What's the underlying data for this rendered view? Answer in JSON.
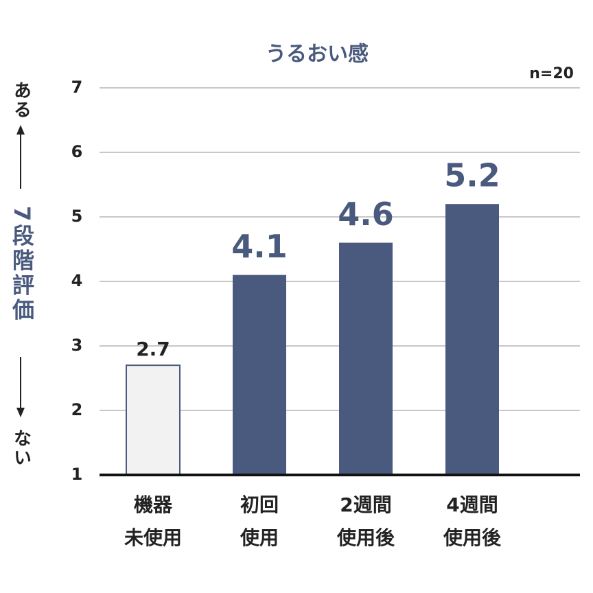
{
  "chart_data": {
    "type": "bar",
    "title": "うるおい感",
    "note": "n=20",
    "y_label_top": "ある",
    "ylabel": "7段階評価",
    "y_label_bottom": "ない",
    "categories": [
      [
        "機器",
        "未使用"
      ],
      [
        "初回",
        "使用"
      ],
      [
        "2週間",
        "使用後"
      ],
      [
        "4週間",
        "使用後"
      ]
    ],
    "values": [
      2.7,
      4.1,
      4.6,
      5.2
    ],
    "colors": [
      "#f2f2f2",
      "#4a5a7e",
      "#4a5a7e",
      "#4a5a7e"
    ],
    "edgecolor": "#4a5a7e",
    "ylim": [
      1,
      7
    ],
    "yticks": [
      1,
      2,
      3,
      4,
      5,
      6,
      7
    ],
    "grid": true
  }
}
